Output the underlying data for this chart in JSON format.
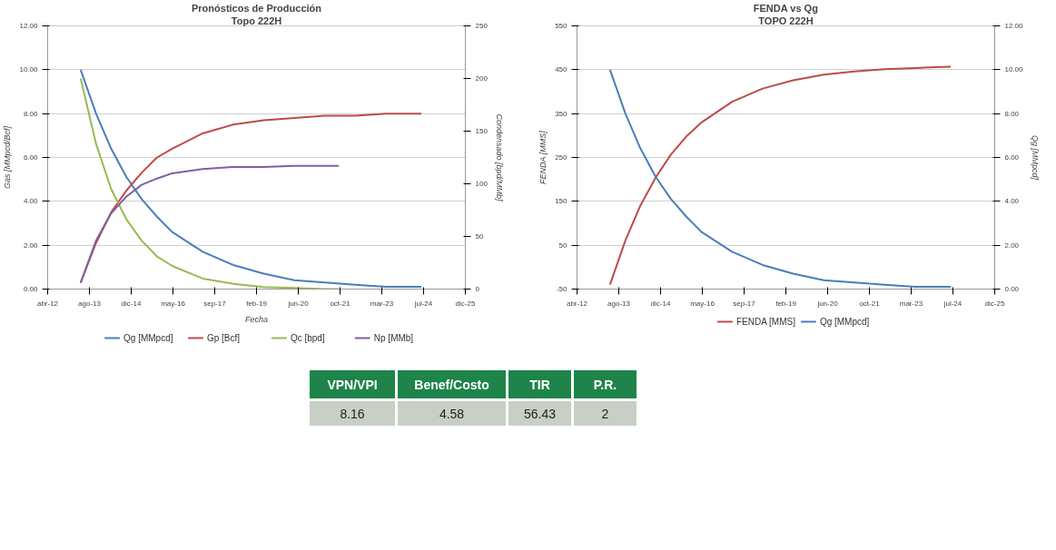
{
  "chart_data": [
    {
      "type": "line",
      "title": "Pronósticos de Producción",
      "subtitle": "Topo 222H",
      "xlabel": "Fecha",
      "ylabel": "Gas [MMpcd/Bcf]",
      "y2label": "Condensado [bpd/MMb]",
      "x": [
        "2013-05-01",
        "2013-11-01",
        "2014-05-01",
        "2014-11-01",
        "2015-05-01",
        "2015-11-01",
        "2016-05-01",
        "2017-05-01",
        "2018-05-01",
        "2019-05-01",
        "2020-05-01",
        "2021-05-01",
        "2022-05-01",
        "2023-05-01",
        "2024-07-01"
      ],
      "series": [
        {
          "name": "Qg [MMpcd]",
          "color": "#4a7ebb",
          "values": [
            10,
            8.0,
            6.4,
            5.1,
            4.1,
            3.3,
            2.6,
            1.7,
            1.1,
            0.7,
            0.4,
            0.3,
            0.2,
            0.1,
            0.1
          ]
        },
        {
          "name": "Gp [Bcf]",
          "color": "#be4b48",
          "values": [
            0.3,
            2.1,
            3.5,
            4.5,
            5.3,
            6.0,
            6.4,
            7.1,
            7.5,
            7.7,
            7.8,
            7.9,
            7.9,
            8.0,
            8.0
          ]
        },
        {
          "name": "Qc [bpd]",
          "color": "#98b954",
          "axis": "y2",
          "x": [
            "2013-05-01",
            "2013-11-01",
            "2014-05-01",
            "2014-11-01",
            "2015-05-01",
            "2015-11-01",
            "2016-05-01",
            "2017-05-01",
            "2018-05-01",
            "2019-05-01",
            "2020-05-01",
            "2021-05-01",
            "2021-10-15"
          ],
          "values": [
            200,
            138,
            95,
            66,
            46,
            31,
            22,
            10,
            5,
            2,
            1,
            0,
            0
          ]
        },
        {
          "name": "Np [MMb]",
          "color": "#7d60a0",
          "axis": "y2",
          "x": [
            "2013-05-01",
            "2013-11-01",
            "2014-05-01",
            "2014-11-01",
            "2015-05-01",
            "2015-11-01",
            "2016-05-01",
            "2017-05-01",
            "2018-05-01",
            "2019-05-01",
            "2020-05-01",
            "2021-05-01",
            "2021-10-15"
          ],
          "values": [
            6,
            46,
            72,
            88,
            99,
            105,
            110,
            114,
            116,
            116,
            117,
            117,
            117
          ]
        }
      ],
      "xlim": [
        "2012-04-01",
        "2025-12-09"
      ],
      "xticks": [
        {
          "value": "2012-04-01",
          "label": "abr-12"
        },
        {
          "value": "2013-08-14",
          "label": "ago-13"
        },
        {
          "value": "2014-12-27",
          "label": "dic-14"
        },
        {
          "value": "2016-05-10",
          "label": "may-16"
        },
        {
          "value": "2017-09-22",
          "label": "sep-17"
        },
        {
          "value": "2019-02-04",
          "label": "feb-19"
        },
        {
          "value": "2020-06-18",
          "label": "jun-20"
        },
        {
          "value": "2021-10-31",
          "label": "oct-21"
        },
        {
          "value": "2023-03-14",
          "label": "mar-23"
        },
        {
          "value": "2024-07-27",
          "label": "jul-24"
        },
        {
          "value": "2025-12-09",
          "label": "dic-25"
        }
      ],
      "ylim": [
        0,
        12
      ],
      "yticks": [
        {
          "value": 0,
          "label": "0.00"
        },
        {
          "value": 2,
          "label": "2.00"
        },
        {
          "value": 4,
          "label": "4.00"
        },
        {
          "value": 6,
          "label": "6.00"
        },
        {
          "value": 8,
          "label": "8.00"
        },
        {
          "value": 10,
          "label": "10.00"
        },
        {
          "value": 12,
          "label": "12.00"
        }
      ],
      "y2lim": [
        0,
        250
      ],
      "y2ticks": [
        0,
        50,
        100,
        150,
        200,
        250
      ],
      "grid": "y",
      "legend": "bottom",
      "marker": "none",
      "line_style": "solid"
    },
    {
      "type": "line",
      "title": "FENDA vs Qg",
      "subtitle": "TOPO 222H",
      "ylabel": "FENDA [MMS]",
      "y2label": "Qg [MMpcd]",
      "x": [
        "2013-05-01",
        "2013-11-01",
        "2014-05-01",
        "2014-11-01",
        "2015-05-01",
        "2015-11-01",
        "2016-05-01",
        "2017-05-01",
        "2018-05-01",
        "2019-05-01",
        "2020-05-01",
        "2021-05-01",
        "2022-05-01",
        "2023-05-01",
        "2024-07-01"
      ],
      "series": [
        {
          "name": "FENDA [MMS]",
          "color": "#be4b48",
          "values": [
            -40,
            61,
            141,
            205,
            257,
            298,
            330,
            377,
            407,
            426,
            439,
            446,
            451,
            454,
            457
          ]
        },
        {
          "name": "Qg [MMpcd]",
          "color": "#4a7ebb",
          "axis": "y2",
          "values": [
            10,
            8.0,
            6.4,
            5.1,
            4.1,
            3.3,
            2.6,
            1.7,
            1.1,
            0.7,
            0.4,
            0.3,
            0.2,
            0.1,
            0.1
          ]
        }
      ],
      "xlim": [
        "2012-04-01",
        "2025-12-09"
      ],
      "xticks": [
        {
          "value": "2012-04-01",
          "label": "abr-12"
        },
        {
          "value": "2013-08-14",
          "label": "ago-13"
        },
        {
          "value": "2014-12-27",
          "label": "dic-14"
        },
        {
          "value": "2016-05-10",
          "label": "may-16"
        },
        {
          "value": "2017-09-22",
          "label": "sep-17"
        },
        {
          "value": "2019-02-04",
          "label": "feb-19"
        },
        {
          "value": "2020-06-18",
          "label": "jun-20"
        },
        {
          "value": "2021-10-31",
          "label": "oct-21"
        },
        {
          "value": "2023-03-14",
          "label": "mar-23"
        },
        {
          "value": "2024-07-27",
          "label": "jul-24"
        },
        {
          "value": "2025-12-09",
          "label": "dic-25"
        }
      ],
      "ylim": [
        -50,
        550
      ],
      "yticks": [
        -50,
        50,
        150,
        250,
        350,
        450,
        550
      ],
      "y2lim": [
        0,
        12
      ],
      "y2ticks": [
        {
          "value": 0,
          "label": "0.00"
        },
        {
          "value": 2,
          "label": "2.00"
        },
        {
          "value": 4,
          "label": "4.00"
        },
        {
          "value": 6,
          "label": "6.00"
        },
        {
          "value": 8,
          "label": "8.00"
        },
        {
          "value": 10,
          "label": "10.00"
        },
        {
          "value": 12,
          "label": "12.00"
        }
      ],
      "grid": "y",
      "legend": "bottom",
      "marker": "none",
      "line_style": "solid"
    },
    {
      "type": "other",
      "categories": [
        "VPN/VPI",
        "Benef/Costo",
        "TIR",
        "P.R."
      ],
      "values": [
        8.16,
        4.58,
        56.43,
        2
      ],
      "data_labels": true
    }
  ]
}
